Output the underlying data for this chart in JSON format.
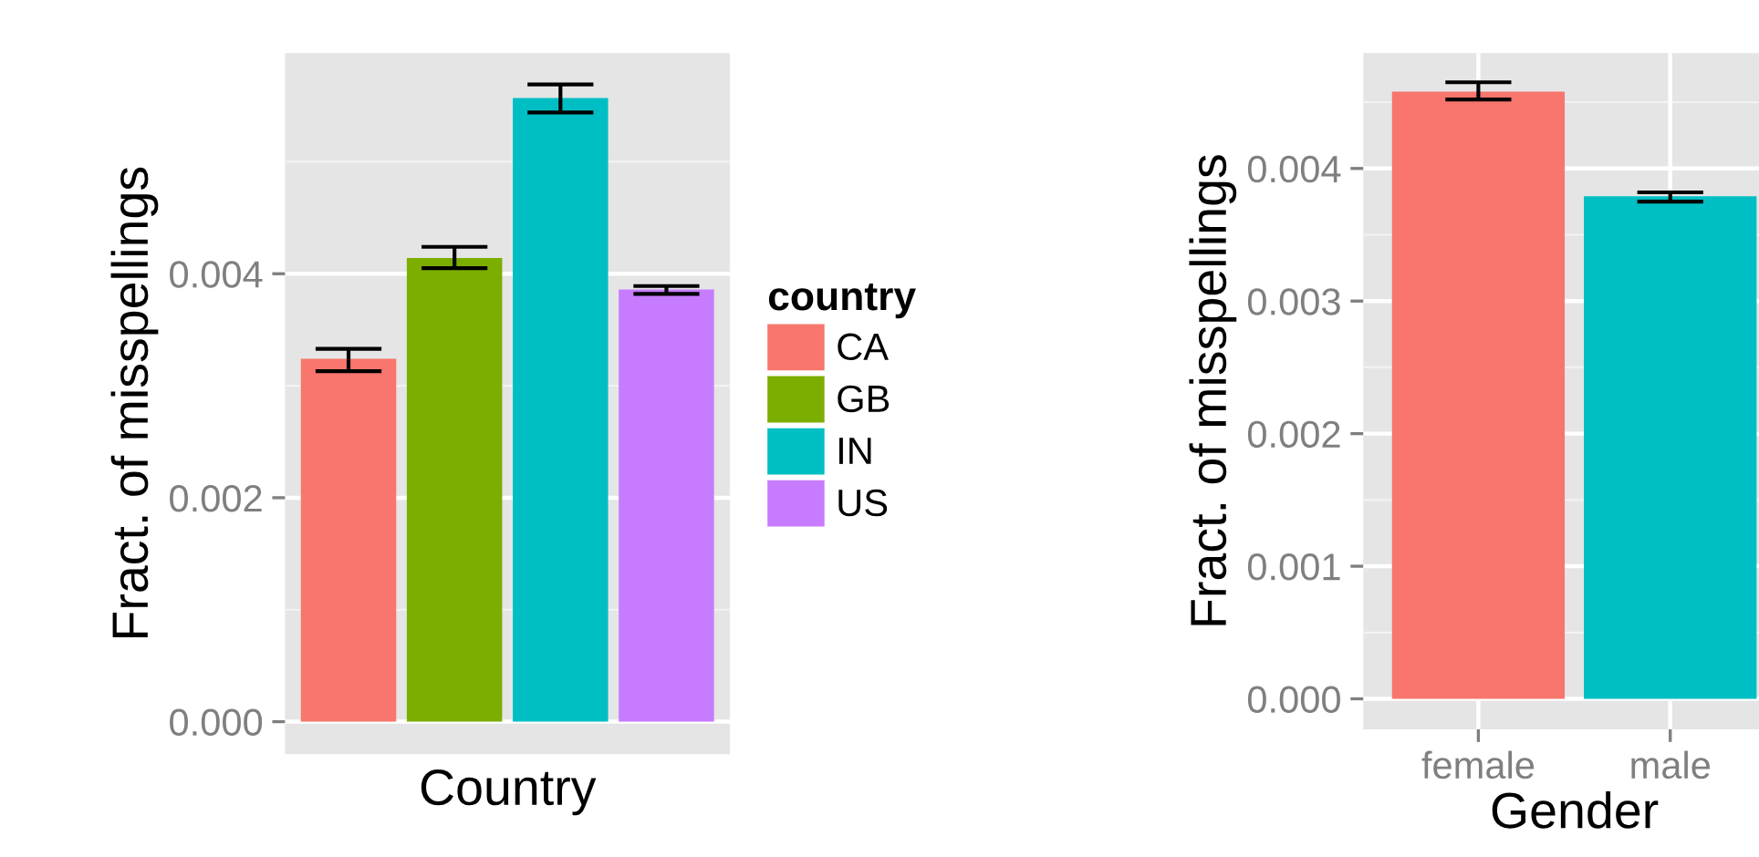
{
  "chart_data": [
    {
      "type": "bar",
      "xlabel": "Country",
      "ylabel": "Fract. of misspellings",
      "legend_title": "country",
      "categories": [
        null,
        null,
        null,
        null
      ],
      "stacked": true,
      "series": [
        {
          "name": "CA",
          "color": "#f8766d",
          "values": [
            0.00324,
            null,
            null,
            null
          ],
          "errors": [
            [
              0.00313,
              0.00333
            ],
            null,
            null,
            null
          ]
        },
        {
          "name": "GB",
          "color": "#7cae00",
          "values": [
            null,
            0.00414,
            null,
            null
          ],
          "errors": [
            null,
            [
              0.00405,
              0.00424
            ],
            null,
            null
          ]
        },
        {
          "name": "IN",
          "color": "#00bfc4",
          "values": [
            null,
            null,
            0.00557,
            null
          ],
          "errors": [
            null,
            null,
            [
              0.00544,
              0.00569
            ],
            null
          ]
        },
        {
          "name": "US",
          "color": "#c77cff",
          "values": [
            null,
            null,
            null,
            0.00386
          ],
          "errors": [
            null,
            null,
            null,
            [
              0.00382,
              0.00389
            ]
          ]
        }
      ],
      "ylim": [
        -0.00029,
        0.00597
      ],
      "yticks": [
        {
          "value": 0,
          "label": "0.000"
        },
        {
          "value": 0.002,
          "label": "0.002"
        },
        {
          "value": 0.004,
          "label": "0.004"
        }
      ],
      "grid": "y",
      "legend": "right"
    },
    {
      "type": "bar",
      "xlabel": "Gender",
      "ylabel": "Fract. of misspellings",
      "categories": [
        "female",
        "male"
      ],
      "values": [
        0.00458,
        0.00379
      ],
      "colors": [
        "#f8766d",
        "#00bfc4"
      ],
      "errors": [
        [
          0.00452,
          0.00465
        ],
        [
          0.00375,
          0.00382
        ]
      ],
      "ylim": [
        -0.00023,
        0.00487
      ],
      "yticks": [
        {
          "value": 0,
          "label": "0.000"
        },
        {
          "value": 0.001,
          "label": "0.001"
        },
        {
          "value": 0.002,
          "label": "0.002"
        },
        {
          "value": 0.003,
          "label": "0.003"
        },
        {
          "value": 0.004,
          "label": "0.004"
        }
      ],
      "grid": true
    }
  ]
}
